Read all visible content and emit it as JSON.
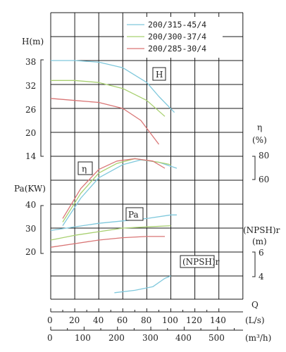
{
  "chart_data": {
    "type": "line",
    "x_axes": [
      {
        "label": "Q",
        "unit": "(L/s)",
        "ticks": [
          "0",
          "20",
          "40",
          "60",
          "80",
          "100",
          "120",
          "140"
        ]
      },
      {
        "unit": "(m³/h)",
        "ticks": [
          "0",
          "100",
          "200",
          "300",
          "400",
          "500"
        ]
      }
    ],
    "y_axes": [
      {
        "label": "H(m)",
        "ticks": [
          "14",
          "20",
          "26",
          "32",
          "38"
        ]
      },
      {
        "label": "η",
        "unit": "(%)",
        "ticks": [
          "60",
          "80"
        ]
      },
      {
        "label": "Pa(KW)",
        "ticks": [
          "20",
          "30",
          "40"
        ]
      },
      {
        "label": "(NPSH)r",
        "unit": "(m)",
        "ticks": [
          "4",
          "6"
        ]
      }
    ],
    "curve_labels": [
      "H",
      "η",
      "Pa",
      "(NPSH)r"
    ],
    "series": [
      {
        "name": "200/315-45/4",
        "color": "#7fc8dc",
        "head": [
          [
            0,
            38
          ],
          [
            20,
            38
          ],
          [
            40,
            37.6
          ],
          [
            60,
            36.2
          ],
          [
            80,
            32.5
          ],
          [
            90,
            29
          ],
          [
            103,
            25
          ]
        ],
        "efficiency": [
          [
            10,
            22
          ],
          [
            25,
            45
          ],
          [
            40,
            62
          ],
          [
            60,
            73
          ],
          [
            75,
            77
          ],
          [
            90,
            75
          ],
          [
            105,
            70
          ]
        ],
        "power": [
          [
            0,
            29
          ],
          [
            40,
            32
          ],
          [
            60,
            33
          ],
          [
            80,
            34
          ],
          [
            100,
            35.5
          ],
          [
            105,
            35.5
          ]
        ],
        "npsh": [
          [
            53,
            2.6
          ],
          [
            70,
            2.8
          ],
          [
            85,
            3.1
          ],
          [
            95,
            3.8
          ],
          [
            100,
            4
          ]
        ]
      },
      {
        "name": "200/300-37/4",
        "color": "#a8d070",
        "head": [
          [
            0,
            33
          ],
          [
            20,
            33
          ],
          [
            40,
            32.5
          ],
          [
            60,
            31
          ],
          [
            80,
            28
          ],
          [
            95,
            24
          ]
        ],
        "efficiency": [
          [
            10,
            25
          ],
          [
            25,
            49
          ],
          [
            40,
            66
          ],
          [
            55,
            74
          ],
          [
            70,
            78
          ],
          [
            90,
            75
          ],
          [
            100,
            73
          ]
        ],
        "power": [
          [
            0,
            25
          ],
          [
            20,
            27
          ],
          [
            40,
            28.5
          ],
          [
            60,
            30
          ],
          [
            80,
            30.5
          ],
          [
            100,
            31
          ]
        ]
      },
      {
        "name": "200/285-30/4",
        "color": "#d97575",
        "head": [
          [
            0,
            28.5
          ],
          [
            20,
            28
          ],
          [
            40,
            27.5
          ],
          [
            60,
            26
          ],
          [
            75,
            23
          ],
          [
            90,
            17
          ]
        ],
        "efficiency": [
          [
            10,
            28
          ],
          [
            25,
            53
          ],
          [
            40,
            69
          ],
          [
            55,
            76
          ],
          [
            70,
            78
          ],
          [
            85,
            76
          ],
          [
            95,
            70
          ]
        ],
        "power": [
          [
            0,
            22
          ],
          [
            20,
            23.5
          ],
          [
            40,
            25
          ],
          [
            60,
            26
          ],
          [
            80,
            26.5
          ],
          [
            95,
            26.5
          ]
        ]
      }
    ]
  }
}
